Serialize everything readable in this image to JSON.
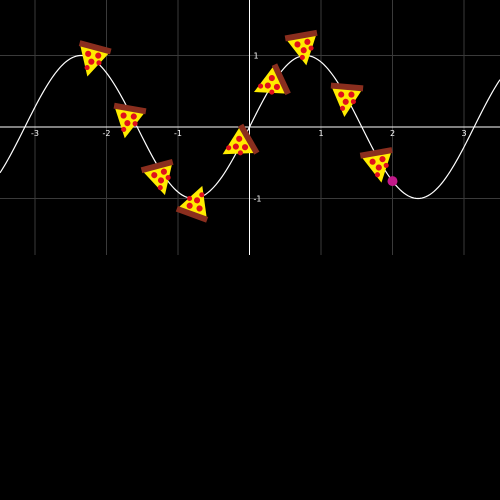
{
  "game": {
    "curve": {
      "function": "sin",
      "amplitude": 1,
      "frequency": 2,
      "color": "#ffffff"
    },
    "x_axis": {
      "range": [
        -3.5,
        3.5
      ],
      "ticks": [
        -3,
        -2,
        -1,
        1,
        2,
        3
      ],
      "tick_labels": [
        "-3",
        "-2",
        "-1",
        "1",
        "2",
        "3"
      ]
    },
    "y_axis": {
      "range": [
        -1.77,
        1.77
      ],
      "ticks": [
        1,
        -1
      ],
      "tick_labels": [
        "1",
        "-1"
      ]
    },
    "grid": true,
    "colors": {
      "background": "#000000",
      "grid": "#3a3a3a",
      "axis": "#ffffff",
      "cursor": "#c2198a"
    },
    "cursor": {
      "x": 2.0,
      "y": -0.757,
      "icon": "target-dot-icon"
    },
    "pizzas": [
      {
        "x": -2.2,
        "y": 0.96,
        "rotation": 15,
        "icon": "pizza-slice-icon"
      },
      {
        "x": -1.7,
        "y": 0.1,
        "rotation": 10,
        "icon": "pizza-slice-icon"
      },
      {
        "x": -1.25,
        "y": -0.7,
        "rotation": -15,
        "icon": "pizza-slice-icon"
      },
      {
        "x": -0.75,
        "y": -1.07,
        "rotation": 200,
        "icon": "pizza-slice-icon"
      },
      {
        "x": -0.15,
        "y": -0.25,
        "rotation": 60,
        "icon": "pizza-slice-icon"
      },
      {
        "x": 0.3,
        "y": 0.6,
        "rotation": 65,
        "icon": "pizza-slice-icon"
      },
      {
        "x": 0.75,
        "y": 1.12,
        "rotation": -10,
        "icon": "pizza-slice-icon"
      },
      {
        "x": 1.35,
        "y": 0.4,
        "rotation": 5,
        "icon": "pizza-slice-icon"
      },
      {
        "x": 1.8,
        "y": -0.52,
        "rotation": -10,
        "icon": "pizza-slice-icon"
      }
    ]
  }
}
